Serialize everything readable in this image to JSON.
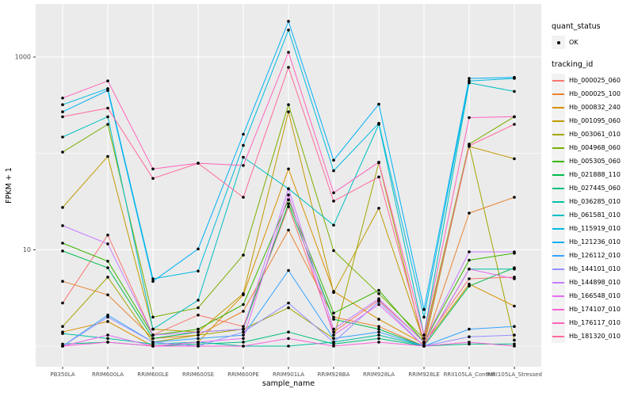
{
  "figure": {
    "background": "#FFFFFF",
    "panel_background": "#EBEBEB",
    "grid_color": "#FFFFFF",
    "point_color": "#000000",
    "tick_text_color": "#4D4D4D",
    "axis_title_color": "#000000"
  },
  "legend": {
    "quant_status_title": "quant_status",
    "quant_status_items": [
      {
        "label": "OK",
        "symbol": "black-point"
      }
    ],
    "tracking_title": "tracking_id"
  },
  "chart_data": {
    "type": "line",
    "title": "",
    "xlabel": "sample_name",
    "ylabel": "FPKM + 1",
    "y_scale": "log10",
    "ylim": [
      0.9,
      3400
    ],
    "y_major_ticks": [
      10,
      1000
    ],
    "y_minor_gridlines": [
      1,
      100
    ],
    "grid": "on",
    "legend_position": "right",
    "categories": [
      "PB350LA",
      "RRIM600LA",
      "RRIM600LE",
      "RRIM600SE",
      "RRIM600PE",
      "RRIM901LA",
      "RRIM928BA",
      "RRIM928LA",
      "RRIM928LE",
      "RRII105LA_Control",
      "RRII105LA_Stressed"
    ],
    "series": [
      {
        "name": "Hb_000025_060",
        "color": "#F8766D",
        "values": [
          2.8,
          14.2,
          1.3,
          2.1,
          1.6,
          28,
          1.4,
          3.0,
          1.1,
          5.0,
          5.2
        ]
      },
      {
        "name": "Hb_000025_100",
        "color": "#EA8331",
        "values": [
          4.7,
          3.4,
          1.2,
          1.3,
          2.3,
          16,
          2.0,
          1.6,
          1.0,
          24,
          35
        ]
      },
      {
        "name": "Hb_000832_240",
        "color": "#D89000",
        "values": [
          1.4,
          1.8,
          1.0,
          1.1,
          3.4,
          69,
          3.7,
          1.9,
          1.05,
          4.4,
          2.6
        ]
      },
      {
        "name": "Hb_001095_060",
        "color": "#C09B00",
        "values": [
          27.5,
          93,
          1.5,
          1.4,
          3.5,
          270,
          3.6,
          27,
          1.1,
          118,
          88
        ]
      },
      {
        "name": "Hb_003061_010",
        "color": "#A3A500",
        "values": [
          1.6,
          5.2,
          1.1,
          1.3,
          1.5,
          2.5,
          1.2,
          80,
          1.0,
          122,
          1.15
        ]
      },
      {
        "name": "Hb_004968_060",
        "color": "#7CAE00",
        "values": [
          103,
          200,
          2.0,
          2.5,
          8.8,
          320,
          9.8,
          3.5,
          1.2,
          125,
          240
        ]
      },
      {
        "name": "Hb_005305_060",
        "color": "#39B600",
        "values": [
          11.7,
          7.6,
          1.3,
          1.5,
          2.7,
          33,
          2.2,
          3.8,
          1.1,
          7.8,
          9.2
        ]
      },
      {
        "name": "Hb_021888_110",
        "color": "#00BB4E",
        "values": [
          9.7,
          6.5,
          1.2,
          1.4,
          1.5,
          30,
          1.9,
          1.5,
          1.0,
          4.2,
          6.5
        ]
      },
      {
        "name": "Hb_027445_060",
        "color": "#00BF7D",
        "values": [
          1.05,
          1.1,
          1.0,
          1.05,
          1.1,
          1.4,
          1.05,
          1.2,
          1.0,
          1.05,
          1.05
        ]
      },
      {
        "name": "Hb_036285_010",
        "color": "#00C1A3",
        "values": [
          1.35,
          1.2,
          1.05,
          1.1,
          1.0,
          1.0,
          1.1,
          1.3,
          1.0,
          6.3,
          6.3
        ]
      },
      {
        "name": "Hb_061581_010",
        "color": "#00BFC4",
        "values": [
          148,
          240,
          1.5,
          3.0,
          91,
          43,
          18,
          200,
          1.3,
          540,
          440
        ]
      },
      {
        "name": "Hb_115919_010",
        "color": "#00BAE0",
        "values": [
          320,
          470,
          5.0,
          6.0,
          121,
          1905,
          66,
          205,
          2.0,
          565,
          600
        ]
      },
      {
        "name": "Hb_121236_010",
        "color": "#00B0F6",
        "values": [
          270,
          450,
          4.7,
          10.2,
          158,
          2350,
          85,
          324,
          2.4,
          600,
          615
        ]
      },
      {
        "name": "Hb_126112_010",
        "color": "#35A2FF",
        "values": [
          1.0,
          2.1,
          1.1,
          1.2,
          1.3,
          6.1,
          1.2,
          1.4,
          1.0,
          1.5,
          1.6
        ]
      },
      {
        "name": "Hb_144101_010",
        "color": "#9590FF",
        "values": [
          1.0,
          2.0,
          1.1,
          1.0,
          1.4,
          2.8,
          1.1,
          2.9,
          1.0,
          1.25,
          1.3
        ]
      },
      {
        "name": "Hb_144898_010",
        "color": "#C77CFF",
        "values": [
          17.8,
          11.5,
          1.3,
          1.4,
          1.5,
          43,
          1.5,
          3.1,
          1.1,
          9.5,
          9.5
        ]
      },
      {
        "name": "Hb_166548_010",
        "color": "#E76BF3",
        "values": [
          1.0,
          1.3,
          1.0,
          1.1,
          1.2,
          37,
          1.3,
          2.7,
          1.0,
          6.3,
          5.0
        ]
      },
      {
        "name": "Hb_174107_010",
        "color": "#FA62DB",
        "values": [
          1.0,
          1.1,
          1.0,
          1.0,
          1.0,
          1.2,
          1.0,
          1.1,
          1.0,
          1.1,
          1.0
        ]
      },
      {
        "name": "Hb_176117_010",
        "color": "#FF62BC",
        "values": [
          375,
          565,
          69,
          79,
          75,
          1120,
          39,
          81,
          1.3,
          235,
          240
        ]
      },
      {
        "name": "Hb_181320_010",
        "color": "#FF6A98",
        "values": [
          240,
          295,
          55,
          79,
          35,
          780,
          32,
          57,
          1.1,
          120,
          200
        ]
      }
    ]
  }
}
